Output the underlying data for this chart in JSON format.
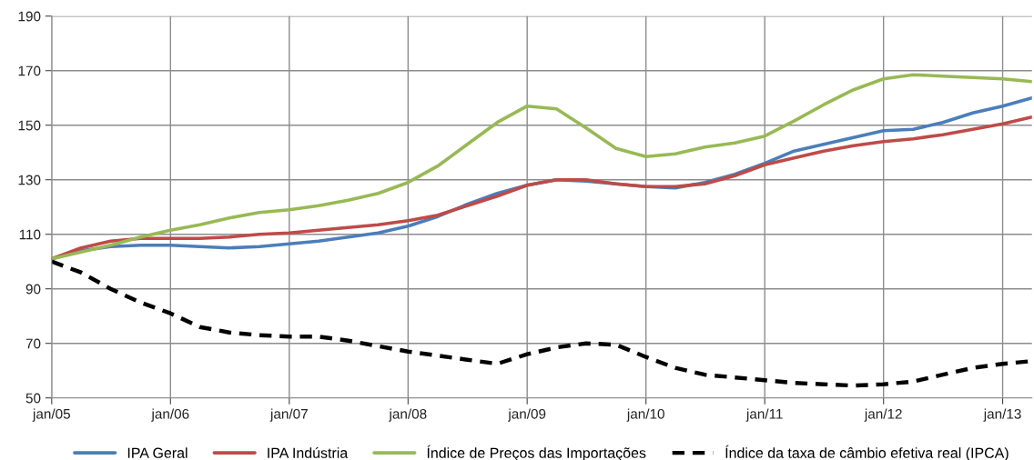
{
  "chart_data": {
    "type": "line",
    "x": [
      "2005-01",
      "2005-04",
      "2005-07",
      "2005-10",
      "2006-01",
      "2006-04",
      "2006-07",
      "2006-10",
      "2007-01",
      "2007-04",
      "2007-07",
      "2007-10",
      "2008-01",
      "2008-04",
      "2008-07",
      "2008-10",
      "2009-01",
      "2009-04",
      "2009-07",
      "2009-10",
      "2010-01",
      "2010-04",
      "2010-07",
      "2010-10",
      "2011-01",
      "2011-04",
      "2011-07",
      "2011-10",
      "2012-01",
      "2012-04",
      "2012-07",
      "2012-10",
      "2013-01",
      "2013-04"
    ],
    "series": [
      {
        "name": "IPA Geral",
        "color": "#4a7ebb",
        "line_style": "solid",
        "values": [
          101,
          104,
          105.5,
          106,
          106,
          105.5,
          105,
          105.5,
          106.5,
          107.5,
          109,
          110.5,
          113,
          116.5,
          121,
          125,
          128,
          130,
          129.5,
          128.5,
          127.5,
          127,
          129,
          132,
          136,
          140.5,
          143,
          145.5,
          148,
          148.5,
          151,
          154.5,
          157,
          160
        ]
      },
      {
        "name": "IPA Indústria",
        "color": "#be4b48",
        "line_style": "solid",
        "values": [
          101,
          105,
          107.5,
          108.5,
          108.5,
          108.5,
          109,
          110,
          110.5,
          111.5,
          112.5,
          113.5,
          115,
          117,
          120.5,
          124,
          128,
          130,
          130,
          128.5,
          127.5,
          127.5,
          128.5,
          131.5,
          135.5,
          138,
          140.5,
          142.5,
          144,
          145,
          146.5,
          148.5,
          150.5,
          153
        ]
      },
      {
        "name": "Índice de Preços das Importações",
        "color": "#98b954",
        "line_style": "solid",
        "values": [
          101,
          103.5,
          106,
          109,
          111.5,
          113.5,
          116,
          118,
          119,
          120.5,
          122.5,
          125,
          129,
          135,
          143,
          151,
          157,
          156,
          149,
          141.5,
          138.5,
          139.5,
          142,
          143.5,
          146,
          151.5,
          157.5,
          163,
          167,
          168.5,
          168,
          167.5,
          167,
          166
        ]
      },
      {
        "name": "Índice da taxa de câmbio efetiva real (IPCA)",
        "color": "#000000",
        "line_style": "dashed",
        "values": [
          100,
          96,
          90,
          85,
          81,
          76,
          74,
          73,
          72.5,
          72.5,
          71,
          69,
          67,
          65.5,
          64,
          62.5,
          66,
          68.5,
          70,
          69.5,
          65,
          61,
          58.5,
          57.5,
          56.5,
          55.5,
          55,
          54.5,
          55,
          56,
          58.5,
          61,
          62.5,
          63.5
        ]
      }
    ],
    "xlim": [
      "2005-01",
      "2013-04"
    ],
    "xticks": [
      {
        "value": "2005-01",
        "label": "jan/05"
      },
      {
        "value": "2006-01",
        "label": "jan/06"
      },
      {
        "value": "2007-01",
        "label": "jan/07"
      },
      {
        "value": "2008-01",
        "label": "jan/08"
      },
      {
        "value": "2009-01",
        "label": "jan/09"
      },
      {
        "value": "2010-01",
        "label": "jan/10"
      },
      {
        "value": "2011-01",
        "label": "jan/11"
      },
      {
        "value": "2012-01",
        "label": "jan/12"
      },
      {
        "value": "2013-01",
        "label": "jan/13"
      }
    ],
    "ylim": [
      50,
      190
    ],
    "yticks": [
      50,
      70,
      90,
      110,
      130,
      150,
      170,
      190
    ],
    "grid": true,
    "legend": "bottom",
    "marker": "none"
  }
}
